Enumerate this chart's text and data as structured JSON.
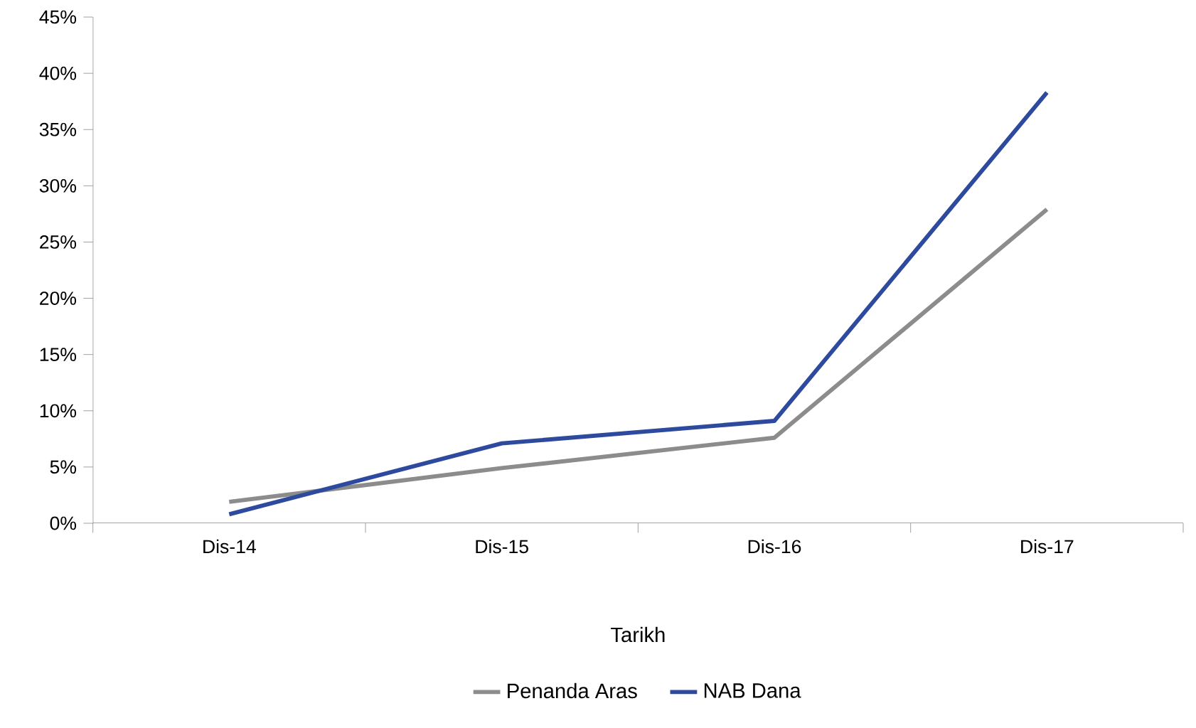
{
  "chart_data": {
    "type": "line",
    "xlabel": "Tarikh",
    "categories": [
      "Dis-14",
      "Dis-15",
      "Dis-16",
      "Dis-17"
    ],
    "series": [
      {
        "name": "Penanda Aras",
        "color": "#8c8c8c",
        "values": [
          1.9,
          4.9,
          7.6,
          27.9
        ]
      },
      {
        "name": "NAB Dana",
        "color": "#2e4a9e",
        "values": [
          0.8,
          7.1,
          9.1,
          38.3
        ]
      }
    ],
    "ylim": [
      0,
      45
    ],
    "yticks": [
      {
        "value": 0,
        "label": "0%"
      },
      {
        "value": 5,
        "label": "5%"
      },
      {
        "value": 10,
        "label": "10%"
      },
      {
        "value": 15,
        "label": "15%"
      },
      {
        "value": 20,
        "label": "20%"
      },
      {
        "value": 25,
        "label": "25%"
      },
      {
        "value": 30,
        "label": "30%"
      },
      {
        "value": 35,
        "label": "35%"
      },
      {
        "value": 40,
        "label": "40%"
      },
      {
        "value": 45,
        "label": "45%"
      }
    ],
    "grid": false,
    "legend": "bottom",
    "line_style": "solid"
  }
}
